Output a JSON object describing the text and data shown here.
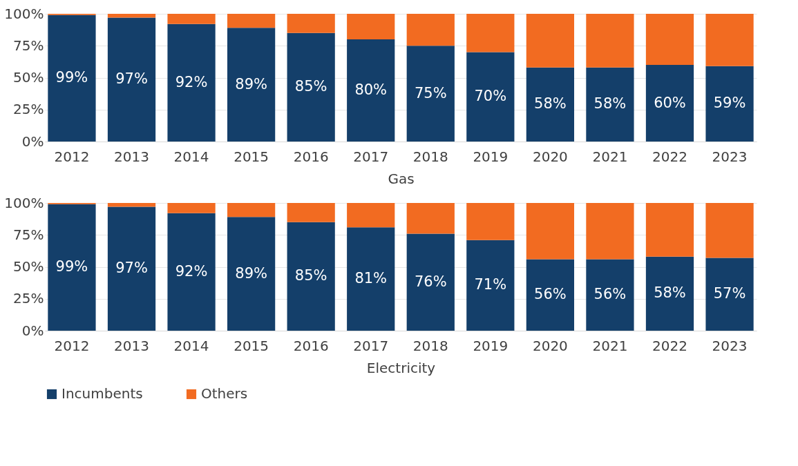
{
  "chart_data": [
    {
      "type": "bar",
      "stacked": true,
      "xlabel": "Gas",
      "categories": [
        "2012",
        "2013",
        "2014",
        "2015",
        "2016",
        "2017",
        "2018",
        "2019",
        "2020",
        "2021",
        "2022",
        "2023"
      ],
      "series": [
        {
          "name": "Incumbents",
          "color": "#143f6a",
          "values": [
            99,
            97,
            92,
            89,
            85,
            80,
            75,
            70,
            58,
            58,
            60,
            59
          ],
          "value_labels": [
            "99%",
            "97%",
            "92%",
            "89%",
            "85%",
            "80%",
            "75%",
            "70%",
            "58%",
            "58%",
            "60%",
            "59%"
          ]
        },
        {
          "name": "Others",
          "color": "#f26b21",
          "values": [
            1,
            3,
            8,
            11,
            15,
            20,
            25,
            30,
            42,
            42,
            40,
            41
          ]
        }
      ],
      "ylim": [
        0,
        100
      ],
      "yticks": [
        {
          "value": 0,
          "label": "0%"
        },
        {
          "value": 25,
          "label": "25%"
        },
        {
          "value": 50,
          "label": "50%"
        },
        {
          "value": 75,
          "label": "75%"
        },
        {
          "value": 100,
          "label": "100%"
        }
      ],
      "grid": "y",
      "legend": "bottom"
    },
    {
      "type": "bar",
      "stacked": true,
      "xlabel": "Electricity",
      "categories": [
        "2012",
        "2013",
        "2014",
        "2015",
        "2016",
        "2017",
        "2018",
        "2019",
        "2020",
        "2021",
        "2022",
        "2023"
      ],
      "series": [
        {
          "name": "Incumbents",
          "color": "#143f6a",
          "values": [
            99,
            97,
            92,
            89,
            85,
            81,
            76,
            71,
            56,
            56,
            58,
            57
          ],
          "value_labels": [
            "99%",
            "97%",
            "92%",
            "89%",
            "85%",
            "81%",
            "76%",
            "71%",
            "56%",
            "56%",
            "58%",
            "57%"
          ]
        },
        {
          "name": "Others",
          "color": "#f26b21",
          "values": [
            1,
            3,
            8,
            11,
            15,
            19,
            24,
            29,
            44,
            44,
            42,
            43
          ]
        }
      ],
      "ylim": [
        0,
        100
      ],
      "yticks": [
        {
          "value": 0,
          "label": "0%"
        },
        {
          "value": 25,
          "label": "25%"
        },
        {
          "value": 50,
          "label": "50%"
        },
        {
          "value": 75,
          "label": "75%"
        },
        {
          "value": 100,
          "label": "100%"
        }
      ],
      "grid": "y",
      "legend": "bottom"
    }
  ]
}
